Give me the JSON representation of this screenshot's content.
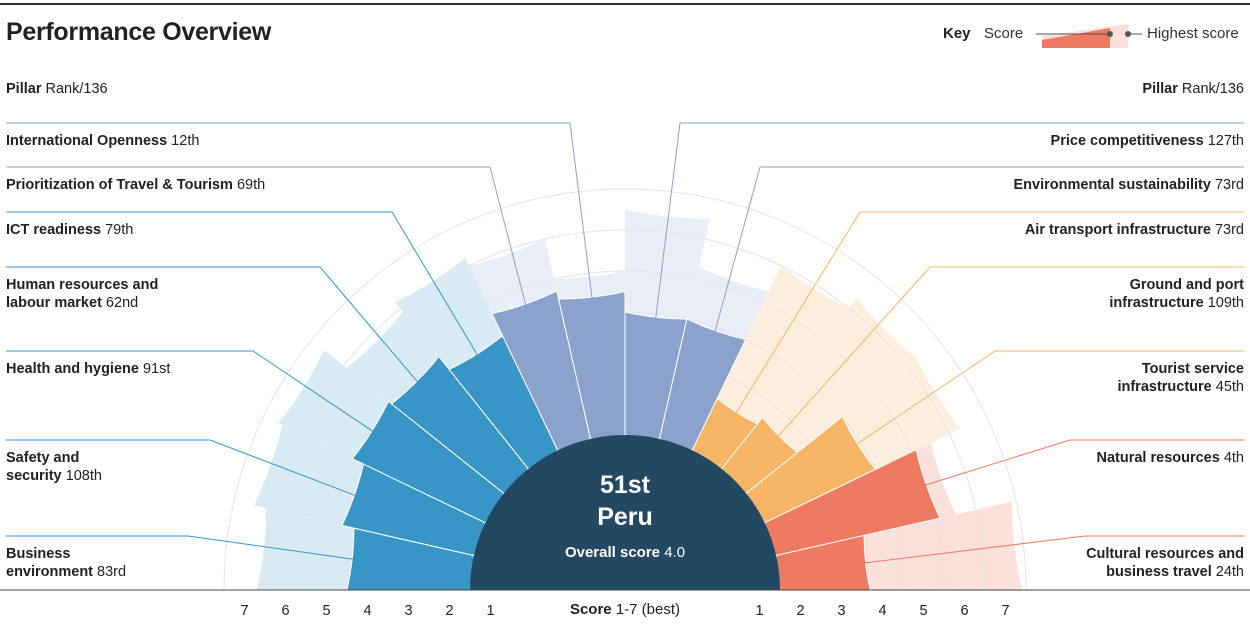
{
  "title": "Performance Overview",
  "key": {
    "label": "Key",
    "score_label": "Score",
    "highest_label": "Highest score"
  },
  "headers": {
    "pillar": "Pillar",
    "rank": "Rank/136"
  },
  "center": {
    "rank": "51st",
    "country": "Peru",
    "score_label": "Overall score",
    "score_value": "4.0"
  },
  "score_caption": {
    "label": "Score",
    "range": "1-7 (best)"
  },
  "colors": {
    "blue": "#3896c6",
    "blue_light": "#d8ebf4",
    "slate": "#8aa2cc",
    "slate_light": "#e8edf6",
    "orange": "#f5b565",
    "orange_light": "#fdeedd",
    "red": "#ee7a62",
    "red_light": "#fbe0dc",
    "center": "#234862"
  },
  "chart_data": {
    "type": "polar-bar",
    "axis": {
      "min": 1,
      "max": 7,
      "ticks": [
        1,
        2,
        3,
        4,
        5,
        6,
        7
      ]
    },
    "pillars": [
      {
        "name": "Business environment",
        "name_lines": [
          "Business",
          "environment"
        ],
        "rank": "83rd",
        "score": 4.0,
        "highest": 6.2,
        "group": "blue",
        "side": "left"
      },
      {
        "name": "Safety and security",
        "name_lines": [
          "Safety and",
          "security"
        ],
        "rank": "108th",
        "score": 4.3,
        "highest": 6.5,
        "group": "blue",
        "side": "left"
      },
      {
        "name": "Health and hygiene",
        "name_lines": [
          "Health and hygiene"
        ],
        "rank": "91st",
        "score": 4.6,
        "highest": 6.6,
        "group": "blue",
        "side": "left"
      },
      {
        "name": "Human resources and labour market",
        "name_lines": [
          "Human resources and",
          "labour market"
        ],
        "rank": "62nd",
        "score": 4.5,
        "highest": 5.9,
        "group": "blue",
        "side": "left"
      },
      {
        "name": "ICT readiness",
        "name_lines": [
          "ICT readiness"
        ],
        "rank": "79th",
        "score": 4.1,
        "highest": 6.2,
        "group": "blue",
        "side": "left"
      },
      {
        "name": "Prioritization of Travel & Tourism",
        "name_lines": [
          "Prioritization of Travel & Tourism"
        ],
        "rank": "69th",
        "score": 4.7,
        "highest": 6.0,
        "group": "slate",
        "side": "left"
      },
      {
        "name": "International Openness",
        "name_lines": [
          "International Openness"
        ],
        "rank": "12th",
        "score": 4.5,
        "highest": 5.0,
        "group": "slate",
        "side": "left"
      },
      {
        "name": "Price competitiveness",
        "name_lines": [
          "Price competitiveness"
        ],
        "rank": "127th",
        "score": 4.0,
        "highest": 6.5,
        "group": "slate",
        "side": "right"
      },
      {
        "name": "Environmental sustainability",
        "name_lines": [
          "Environmental sustainability"
        ],
        "rank": "73rd",
        "score": 4.0,
        "highest": 5.3,
        "group": "slate",
        "side": "right"
      },
      {
        "name": "Air transport infrastructure",
        "name_lines": [
          "Air transport infrastructure"
        ],
        "rank": "73rd",
        "score": 2.4,
        "highest": 6.0,
        "group": "orange",
        "side": "right"
      },
      {
        "name": "Ground and port infrastructure",
        "name_lines": [
          "Ground and port",
          "infrastructure"
        ],
        "rank": "109th",
        "score": 2.6,
        "highest": 6.3,
        "group": "orange",
        "side": "right"
      },
      {
        "name": "Tourist service infrastructure",
        "name_lines": [
          "Tourist service",
          "infrastructure"
        ],
        "rank": "45th",
        "score": 4.0,
        "highest": 6.3,
        "group": "orange",
        "side": "right"
      },
      {
        "name": "Natural resources",
        "name_lines": [
          "Natural resources"
        ],
        "rank": "4th",
        "score": 5.1,
        "highest": 5.5,
        "group": "red",
        "side": "right"
      },
      {
        "name": "Cultural resources and business travel",
        "name_lines": [
          "Cultural resources and",
          "business travel"
        ],
        "rank": "24th",
        "score": 3.2,
        "highest": 6.9,
        "group": "red",
        "side": "right"
      }
    ]
  }
}
